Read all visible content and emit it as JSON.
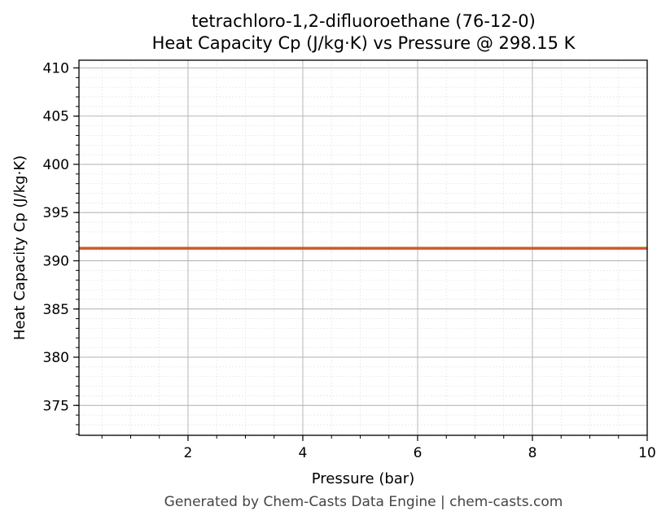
{
  "chart_data": {
    "type": "line",
    "title": "tetrachloro-1,2-difluoroethane (76-12-0)",
    "subtitle": "Heat Capacity Cp (J/kg·K) vs Pressure @ 298.15 K",
    "xlabel": "Pressure (bar)",
    "ylabel": "Heat Capacity Cp (J/kg·K)",
    "xlim": [
      0.1,
      10
    ],
    "ylim": [
      371.9,
      410.8
    ],
    "xticks": [
      2,
      4,
      6,
      8,
      10
    ],
    "yticks": [
      375,
      380,
      385,
      390,
      395,
      400,
      405,
      410
    ],
    "grid": true,
    "series": [
      {
        "x": [
          0.1,
          10
        ],
        "y": [
          391.3,
          391.3
        ],
        "color": "#cc5a2a"
      }
    ]
  },
  "footer": "Generated by Chem-Casts Data Engine | chem-casts.com"
}
